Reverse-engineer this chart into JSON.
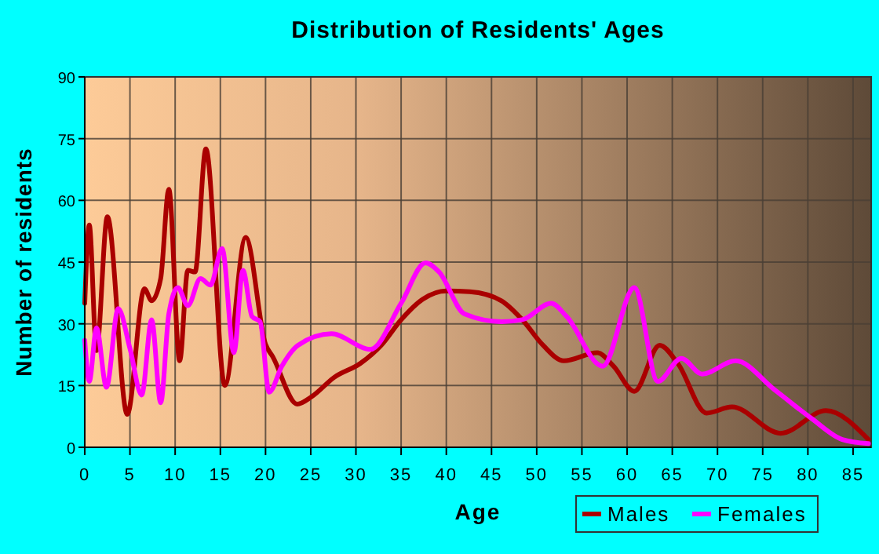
{
  "chart_data": {
    "type": "line",
    "title": "Distribution of Residents' Ages",
    "xlabel": "Age",
    "ylabel": "Number of residents",
    "xlim": [
      0,
      87
    ],
    "xticks": [
      0,
      5,
      10,
      15,
      20,
      25,
      30,
      35,
      40,
      45,
      50,
      55,
      60,
      65,
      70,
      75,
      80,
      85
    ],
    "ylim": [
      0,
      90
    ],
    "yticks": [
      0,
      15,
      30,
      45,
      60,
      75,
      90
    ],
    "grid": true,
    "legend": "bottom right",
    "line_style": "solid",
    "marker": "none",
    "series": [
      {
        "name": "Males",
        "color": "#aa0000",
        "x": [
          0,
          0.5,
          1.3,
          2.5,
          4.7,
          6.6,
          7.4,
          8.4,
          9.3,
          10.5,
          11.4,
          12.2,
          13.4,
          15.5,
          17.8,
          20,
          20.8,
          23.5,
          25.1,
          27.6,
          30.5,
          32.8,
          35,
          37.4,
          40,
          42.6,
          46.1,
          48.4,
          50.7,
          53,
          56.7,
          58.5,
          60.8,
          63.6,
          65.6,
          68.8,
          71.6,
          77,
          82,
          86.7
        ],
        "values": [
          35,
          54,
          23.5,
          56,
          8,
          38.5,
          35.6,
          41,
          62.7,
          21,
          43,
          42.6,
          72.5,
          15,
          51,
          25,
          22,
          10.5,
          12.3,
          17,
          20.4,
          24.8,
          31,
          36,
          38,
          37.8,
          35.6,
          31,
          24.8,
          21,
          23,
          19.7,
          13.6,
          24.8,
          20.4,
          8.3,
          9.8,
          3.4,
          8.9,
          1.9
        ]
      },
      {
        "name": "Females",
        "color": "#ff00ff",
        "x": [
          0,
          0.5,
          1.3,
          2.4,
          3.7,
          5,
          6.3,
          7.4,
          8.4,
          9.3,
          10.3,
          11.4,
          12.8,
          13.9,
          15.2,
          16.5,
          17.5,
          18.5,
          19.4,
          20.4,
          21.8,
          23.6,
          27.3,
          31.6,
          35,
          37.7,
          39.2,
          42,
          46.1,
          48.4,
          51.6,
          53.3,
          57.3,
          60.8,
          63.4,
          66,
          68.3,
          72,
          76.3,
          80.4,
          83.8,
          86.7
        ],
        "values": [
          26,
          16,
          29,
          14.6,
          33.7,
          24,
          12.7,
          31,
          10.8,
          32.4,
          38.8,
          34.4,
          41,
          39.4,
          48.3,
          23,
          43,
          31.8,
          30.5,
          13.4,
          19.7,
          24.8,
          27.6,
          23.8,
          35,
          44.8,
          42.6,
          32.4,
          30.5,
          31,
          35,
          31.8,
          19.7,
          38.8,
          16,
          21.6,
          17.8,
          21,
          14,
          7,
          1.9,
          0.9
        ]
      }
    ]
  }
}
